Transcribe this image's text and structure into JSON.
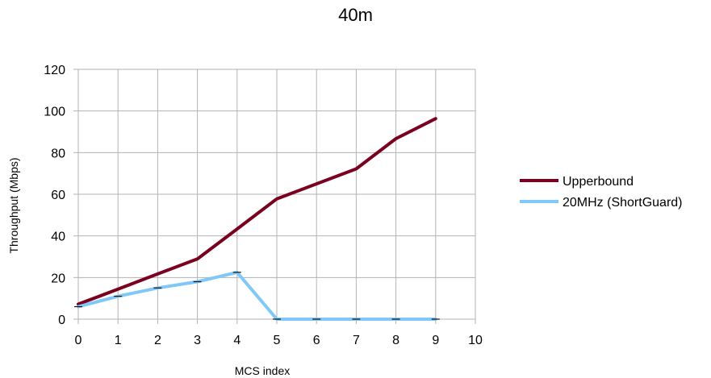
{
  "chart_data": {
    "type": "line",
    "title": "40m",
    "xlabel": "MCS index",
    "ylabel": "Throughput (Mbps)",
    "xlim": [
      0,
      10
    ],
    "ylim": [
      0,
      120
    ],
    "xticks": [
      "0",
      "1",
      "2",
      "3",
      "4",
      "5",
      "6",
      "7",
      "8",
      "9",
      "10"
    ],
    "yticks": [
      "0",
      "20",
      "40",
      "60",
      "80",
      "100",
      "120"
    ],
    "grid": true,
    "legend_position": "right",
    "series": [
      {
        "name": "Upperbound",
        "color": "#7a0020",
        "x": [
          0,
          1,
          2,
          3,
          4,
          5,
          6,
          7,
          8,
          9
        ],
        "values": [
          7.2,
          14.4,
          21.7,
          28.9,
          43.3,
          57.8,
          65,
          72.2,
          86.7,
          96.3
        ]
      },
      {
        "name": "20MHz (ShortGuard)",
        "color": "#80c8f8",
        "x": [
          0,
          1,
          2,
          3,
          4,
          5,
          6,
          7,
          8,
          9
        ],
        "values": [
          6,
          11,
          15,
          18,
          22.5,
          0,
          0,
          0,
          0,
          0
        ],
        "error_markers": true
      }
    ]
  }
}
